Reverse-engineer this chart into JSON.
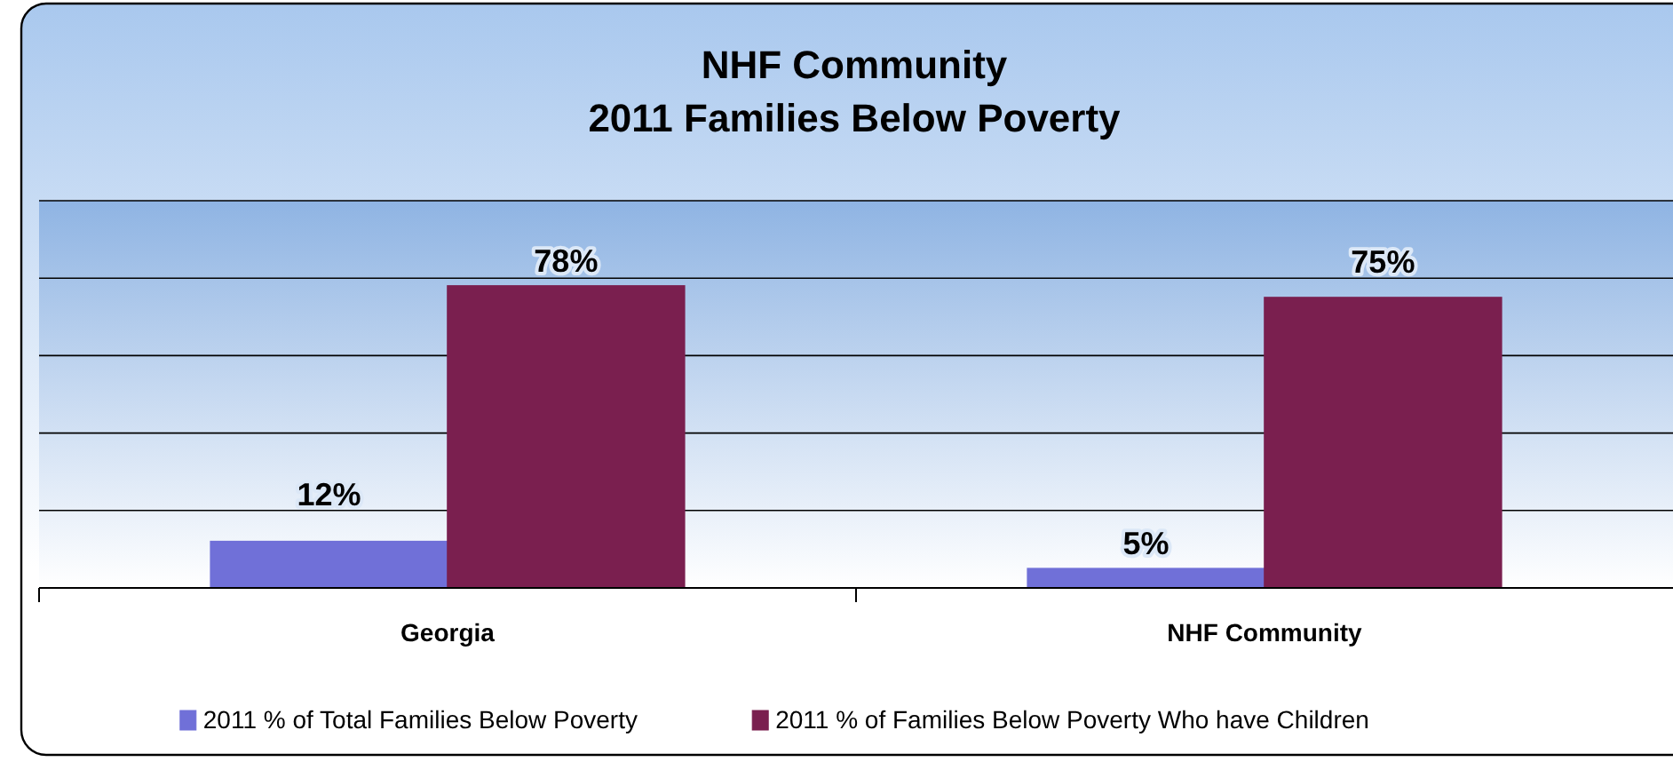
{
  "chart_data": {
    "type": "bar",
    "title": "NHF Community\n2011 Families Below Poverty",
    "categories": [
      "Georgia",
      "NHF Community"
    ],
    "series": [
      {
        "name": "2011 % of Total Families Below Poverty",
        "color": "#7070d8",
        "values": [
          12,
          5
        ],
        "value_labels": [
          "12%",
          "5%"
        ]
      },
      {
        "name": "2011 % of Families Below Poverty Who have Children",
        "color": "#7a1f4f",
        "values": [
          78,
          75
        ],
        "value_labels": [
          "78%",
          "75%"
        ]
      }
    ],
    "ylim": [
      0,
      100
    ],
    "yticks": [
      {
        "value": 0,
        "label": null
      },
      {
        "value": 20,
        "label": null
      },
      {
        "value": 40,
        "label": null
      },
      {
        "value": 60,
        "label": null
      },
      {
        "value": 80,
        "label": null
      },
      {
        "value": 100,
        "label": null
      }
    ],
    "grid": "y",
    "tick_labels": "x",
    "legend": "bottom"
  }
}
